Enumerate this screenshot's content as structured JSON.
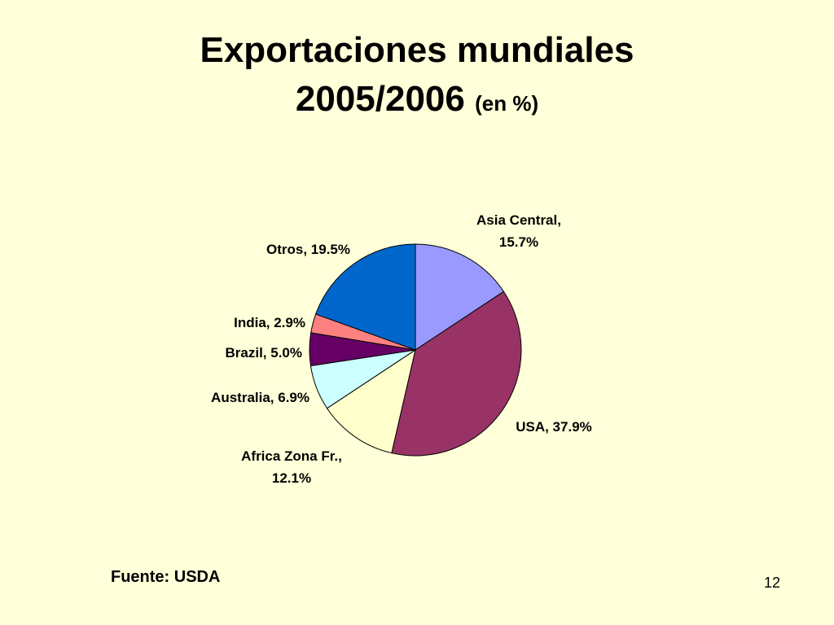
{
  "slide": {
    "title_line1": "Exportaciones mundiales",
    "title_line2": "2005/2006",
    "title_unit": "(en %)",
    "source": "Fuente: USDA",
    "page_number": "12"
  },
  "chart_data": {
    "type": "pie",
    "title": "Exportaciones mundiales 2005/2006 (en %)",
    "slices": [
      {
        "label": "Asia Central,",
        "label2": "15.7%",
        "value": 15.7,
        "color": "#9999FF"
      },
      {
        "label": "USA, 37.9%",
        "label2": "",
        "value": 37.9,
        "color": "#993366"
      },
      {
        "label": "Africa Zona Fr.,",
        "label2": "12.1%",
        "value": 12.1,
        "color": "#FFFFCC"
      },
      {
        "label": "Australia, 6.9%",
        "label2": "",
        "value": 6.9,
        "color": "#CCFFFF"
      },
      {
        "label": "Brazil, 5.0%",
        "label2": "",
        "value": 5.0,
        "color": "#660066"
      },
      {
        "label": "India, 2.9%",
        "label2": "",
        "value": 2.9,
        "color": "#FF8080"
      },
      {
        "label": "Otros, 19.5%",
        "label2": "",
        "value": 19.5,
        "color": "#0066CC"
      }
    ]
  }
}
